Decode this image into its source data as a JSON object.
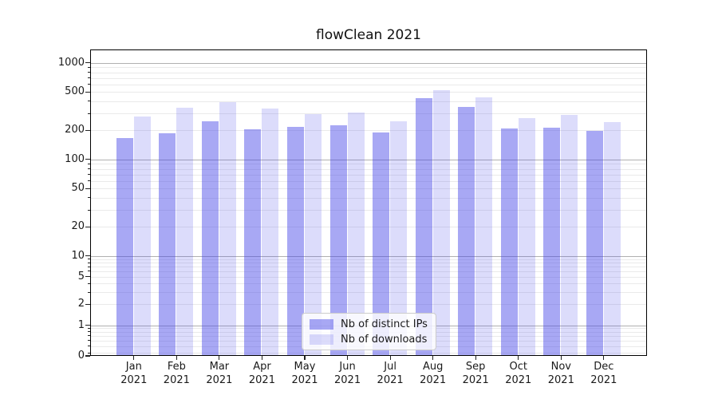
{
  "chart_data": {
    "type": "bar",
    "title": "flowClean 2021",
    "categories": [
      "Jan 2021",
      "Feb 2021",
      "Mar 2021",
      "Apr 2021",
      "May 2021",
      "Jun 2021",
      "Jul 2021",
      "Aug 2021",
      "Sep 2021",
      "Oct 2021",
      "Nov 2021",
      "Dec 2021"
    ],
    "months": [
      "Jan",
      "Feb",
      "Mar",
      "Apr",
      "May",
      "Jun",
      "Jul",
      "Aug",
      "Sep",
      "Oct",
      "Nov",
      "Dec"
    ],
    "year_label": "2021",
    "series": [
      {
        "name": "Nb of distinct IPs",
        "color": "rgba(70,70,232,0.47)",
        "values": [
          165,
          188,
          250,
          207,
          216,
          227,
          190,
          430,
          350,
          210,
          213,
          198
        ]
      },
      {
        "name": "Nb of downloads",
        "color": "rgba(70,70,232,0.19)",
        "values": [
          278,
          342,
          395,
          338,
          296,
          306,
          248,
          518,
          441,
          266,
          288,
          246
        ]
      }
    ],
    "yscale": "symlog",
    "yticks": [
      0,
      1,
      2,
      5,
      10,
      20,
      50,
      100,
      200,
      500,
      1000
    ],
    "ylim": [
      0,
      1380
    ],
    "grid": true,
    "legend_position": "lower center"
  },
  "colors": {
    "major_grid": "#b0b0b0",
    "minor_grid": "#eaeaea",
    "spine": "#000000",
    "text": "#1a1a1a",
    "legend_border": "#cccccc",
    "legend_background": "rgba(255,255,255,0.8)"
  }
}
